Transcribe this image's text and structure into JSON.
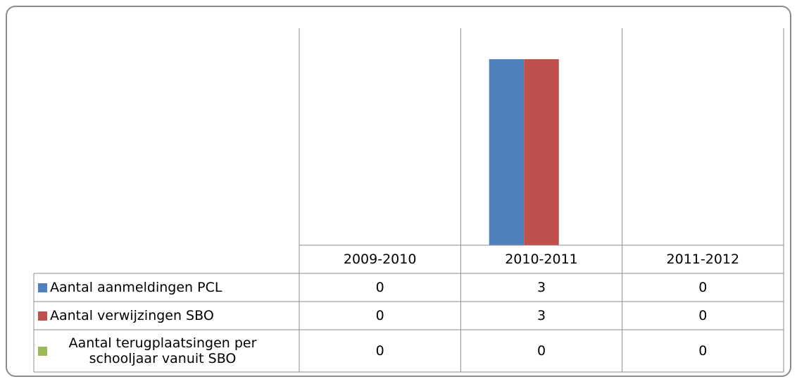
{
  "chart_data": {
    "type": "bar",
    "categories": [
      "2009-2010",
      "2010-2011",
      "2011-2012"
    ],
    "series": [
      {
        "name": "Aantal aanmeldingen PCL",
        "color": "#4f81bd",
        "values": [
          0,
          3,
          0
        ]
      },
      {
        "name": "Aantal verwijzingen SBO",
        "color": "#c0504d",
        "values": [
          0,
          3,
          0
        ]
      },
      {
        "name": "Aantal terugplaatsingen per schooljaar vanuit SBO",
        "color": "#9bbb59",
        "values": [
          0,
          0,
          0
        ]
      }
    ],
    "ylim": [
      0,
      3.5
    ]
  }
}
